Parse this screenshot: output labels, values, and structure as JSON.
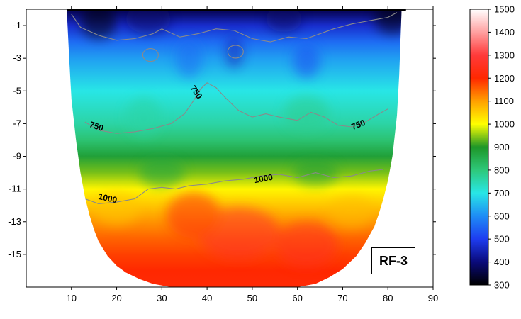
{
  "chart_data": {
    "type": "heatmap",
    "title": "",
    "xlabel": "",
    "ylabel": "",
    "xlim": [
      0,
      90
    ],
    "ylim": [
      -17,
      0
    ],
    "x_ticks": [
      10,
      20,
      30,
      40,
      50,
      60,
      70,
      80,
      90
    ],
    "y_ticks": [
      -1,
      -3,
      -5,
      -7,
      -9,
      -11,
      -13,
      -15
    ],
    "colorbar": {
      "min": 300,
      "max": 1500,
      "ticks": [
        300,
        400,
        500,
        600,
        700,
        800,
        900,
        1000,
        1100,
        1200,
        1300,
        1400,
        1500
      ],
      "stops": [
        {
          "value": 300,
          "color": "#000000"
        },
        {
          "value": 400,
          "color": "#0a0a7a"
        },
        {
          "value": 500,
          "color": "#1e3cf0"
        },
        {
          "value": 600,
          "color": "#1e8cf5"
        },
        {
          "value": 700,
          "color": "#28e6e6"
        },
        {
          "value": 800,
          "color": "#2ec87a"
        },
        {
          "value": 900,
          "color": "#1e9628"
        },
        {
          "value": 1000,
          "color": "#ffff00"
        },
        {
          "value": 1100,
          "color": "#ffa000"
        },
        {
          "value": 1200,
          "color": "#ff2800"
        },
        {
          "value": 1300,
          "color": "#ff3a3a"
        },
        {
          "value": 1400,
          "color": "#ffa0a0"
        },
        {
          "value": 1500,
          "color": "#ffffff"
        }
      ]
    },
    "section_boundary": {
      "x": [
        9,
        9.5,
        10,
        11,
        12,
        13,
        14,
        15,
        16,
        18,
        20,
        22,
        25,
        28,
        32,
        36,
        40,
        44,
        48,
        52,
        56,
        60,
        64,
        67,
        70,
        73,
        75,
        77,
        78,
        79,
        80,
        81,
        82,
        82.5,
        83
      ],
      "bottom": [
        -0.2,
        -3,
        -5.5,
        -8,
        -10,
        -11.5,
        -12.6,
        -13.5,
        -14.2,
        -15.1,
        -15.7,
        -16.1,
        -16.5,
        -16.8,
        -17,
        -17,
        -17,
        -17,
        -17,
        -17,
        -17,
        -17,
        -16.8,
        -16.4,
        -15.9,
        -15.1,
        -14.3,
        -13.3,
        -12.5,
        -11.6,
        -10.5,
        -9,
        -6.5,
        -4,
        -0.2
      ]
    },
    "profile_depth_cm": [
      -0.2,
      -1,
      -2,
      -3,
      -4,
      -5,
      -6,
      -7,
      -8,
      -9,
      -10,
      -11,
      -12,
      -13,
      -14,
      -15,
      -16,
      -17
    ],
    "profile_values": [
      380,
      470,
      560,
      620,
      660,
      700,
      730,
      760,
      810,
      880,
      940,
      1010,
      1060,
      1110,
      1150,
      1180,
      1200,
      1210
    ],
    "contours": [
      {
        "level": 750,
        "x": [
          13,
          16,
          20,
          24,
          28,
          32,
          35,
          37,
          38.5,
          40,
          42,
          44,
          47,
          50,
          53,
          56,
          60,
          63,
          66,
          69,
          72,
          75,
          78,
          80
        ],
        "y": [
          -6.9,
          -7.4,
          -7.6,
          -7.5,
          -7.3,
          -7,
          -6.4,
          -5.6,
          -4.9,
          -4.5,
          -4.8,
          -5.4,
          -6.2,
          -6.6,
          -6.4,
          -6.6,
          -6.8,
          -6.3,
          -6.6,
          -7.1,
          -7.2,
          -6.9,
          -6.4,
          -6.1
        ]
      },
      {
        "level": 1000,
        "x": [
          13,
          16,
          20,
          24,
          27,
          30,
          33,
          36,
          40,
          44,
          48,
          52,
          56,
          60,
          64,
          68,
          72,
          76,
          79
        ],
        "y": [
          -11.6,
          -11.9,
          -11.8,
          -11.6,
          -11,
          -10.9,
          -11,
          -10.8,
          -10.7,
          -10.5,
          -10.4,
          -10.2,
          -10.1,
          -10.3,
          -10.0,
          -10.3,
          -10.2,
          -9.9,
          -9.8
        ]
      },
      {
        "level": 500,
        "x": [
          10,
          12,
          16,
          20,
          24,
          28,
          30,
          34,
          38,
          42,
          46,
          50,
          54,
          58,
          62,
          66,
          68,
          72,
          76,
          80,
          82
        ],
        "y": [
          -0.3,
          -1.1,
          -1.6,
          -1.9,
          -1.8,
          -1.5,
          -1.2,
          -1.7,
          -1.5,
          -1.2,
          -1.3,
          -1.8,
          -2.0,
          -1.7,
          -1.8,
          -1.4,
          -1.2,
          -0.9,
          -0.7,
          -0.5,
          -0.2
        ]
      }
    ],
    "contour_labels": [
      {
        "text": "750",
        "x": 37.5,
        "y": -5.1,
        "angle": 55
      },
      {
        "text": "750",
        "x": 15.5,
        "y": -7.2,
        "angle": 18
      },
      {
        "text": "750",
        "x": 73.5,
        "y": -7.1,
        "angle": -22
      },
      {
        "text": "1000",
        "x": 52.5,
        "y": -10.4,
        "angle": -10
      },
      {
        "text": "1000",
        "x": 18,
        "y": -11.6,
        "angle": 12
      }
    ],
    "box_label": "RF-3",
    "grid": false,
    "legend": "colorbar-right"
  }
}
